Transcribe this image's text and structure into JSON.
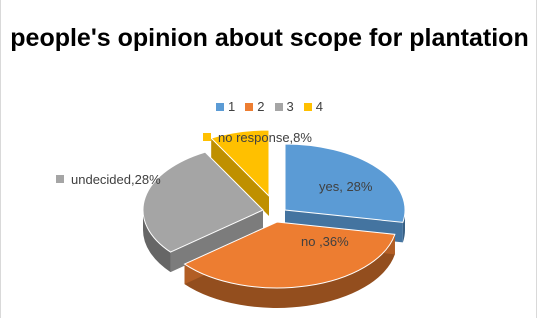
{
  "chart_data": {
    "type": "pie",
    "title": "people's opinion about scope for plantation",
    "legend": [
      "1",
      "2",
      "3",
      "4"
    ],
    "legend_position": "top",
    "slices": [
      {
        "label": "yes, 28%",
        "value": 28,
        "color": "#5b9bd5"
      },
      {
        "label": "no ,36%",
        "value": 36,
        "color": "#ed7d31"
      },
      {
        "label": "undecided,28%",
        "value": 28,
        "color": "#a5a5a5"
      },
      {
        "label": "no response,8%",
        "value": 8,
        "color": "#ffc000"
      }
    ]
  }
}
